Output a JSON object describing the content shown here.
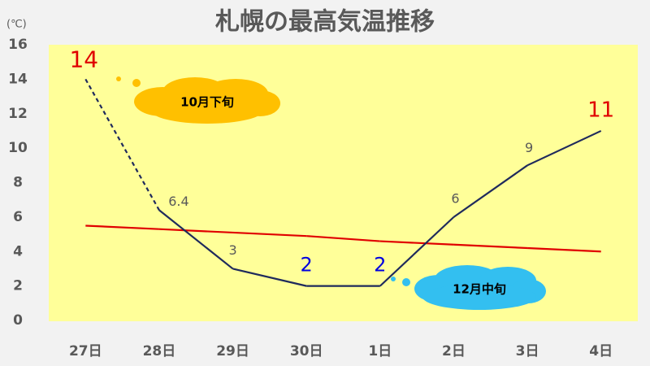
{
  "chart_data": {
    "type": "line",
    "title": "札幌の最高気温推移",
    "y_unit": "(℃)",
    "categories": [
      "27日",
      "28日",
      "29日",
      "30日",
      "1日",
      "2日",
      "3日",
      "4日"
    ],
    "series": [
      {
        "color": "#1f2a5c",
        "values": [
          14,
          6.4,
          3,
          2,
          2,
          6,
          9,
          11
        ],
        "dashed_segments": [
          0
        ],
        "label_colors": [
          "#e00000",
          "#595959",
          "#595959",
          "#0000e0",
          "#0000e0",
          "#595959",
          "#595959",
          "#e00000"
        ]
      },
      {
        "color": "#e00000",
        "values": [
          5.5,
          5.3,
          5.1,
          4.9,
          4.6,
          4.4,
          4.2,
          4.0
        ]
      }
    ],
    "ylim": [
      0,
      16
    ],
    "yticks": [
      0,
      2,
      4,
      6,
      8,
      10,
      12,
      14,
      16
    ],
    "background": "#ffff99",
    "annotations": [
      {
        "text": "10月下旬"
      },
      {
        "text": "12月中旬"
      }
    ]
  }
}
